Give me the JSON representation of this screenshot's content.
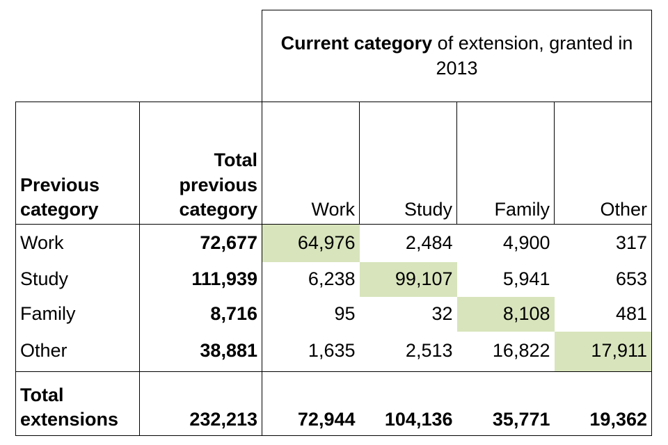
{
  "header": {
    "title_bold": "Current category",
    "title_rest": " of extension, granted in 2013"
  },
  "columns": {
    "previous_category": "Previous category",
    "total_previous": "Total previous category",
    "current": [
      "Work",
      "Study",
      "Family",
      "Other"
    ]
  },
  "rows": [
    {
      "label": "Work",
      "total": "72,677",
      "values": [
        "64,976",
        "2,484",
        "4,900",
        "317"
      ]
    },
    {
      "label": "Study",
      "total": "111,939",
      "values": [
        "6,238",
        "99,107",
        "5,941",
        "653"
      ]
    },
    {
      "label": "Family",
      "total": "8,716",
      "values": [
        "95",
        "32",
        "8,108",
        "481"
      ]
    },
    {
      "label": "Other",
      "total": "38,881",
      "values": [
        "1,635",
        "2,513",
        "16,822",
        "17,911"
      ]
    }
  ],
  "totals": {
    "label": "Total extensions",
    "total": "232,213",
    "values": [
      "72,944",
      "104,136",
      "35,771",
      "19,362"
    ]
  },
  "colors": {
    "diagonal_highlight": "#d8e4bc",
    "border": "#000000"
  }
}
